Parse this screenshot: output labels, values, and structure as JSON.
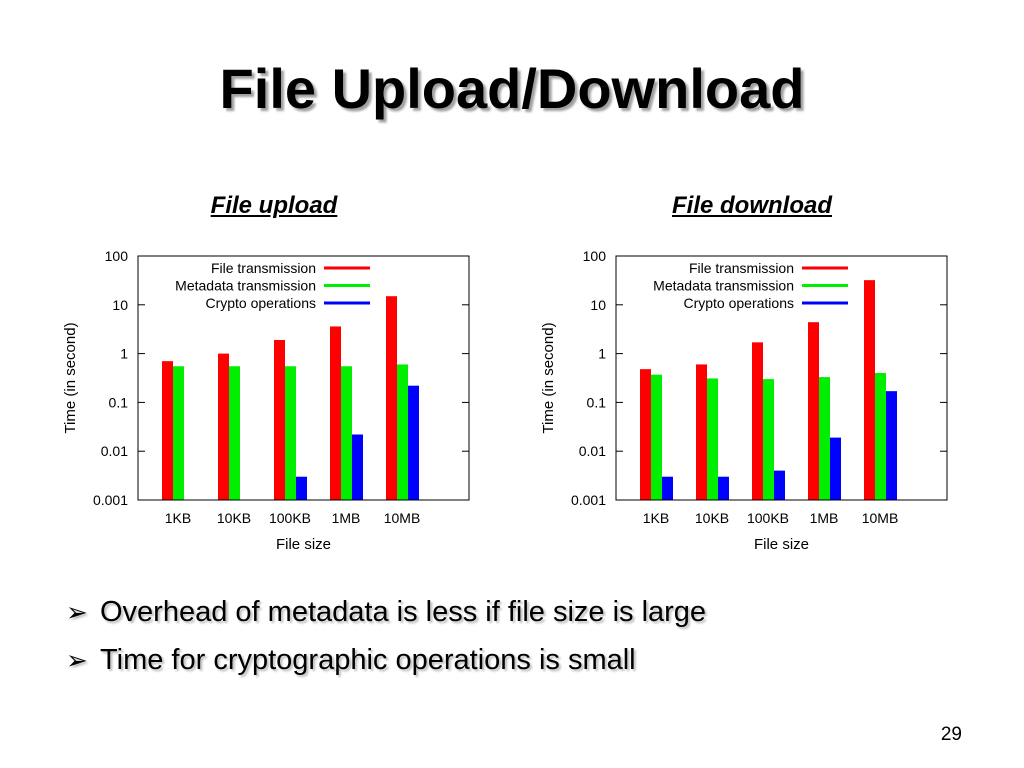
{
  "slide": {
    "title": "File Upload/Download",
    "bullets": [
      "Overhead of metadata is less if file size is large",
      "Time for cryptographic operations is small"
    ],
    "bullet_icon": "arrowhead-bullet-icon",
    "page_number": "29"
  },
  "colors": {
    "file_transmission": "#ff0000",
    "metadata_transmission": "#00ee00",
    "crypto_operations": "#0000ff"
  },
  "chart_data": [
    {
      "heading": "File upload",
      "type": "bar",
      "title": "",
      "xlabel": "File size",
      "ylabel": "Time (in second)",
      "yscale": "log",
      "ylim": [
        0.001,
        100
      ],
      "yticks": [
        "100",
        "10",
        "1",
        "0.1",
        "0.01",
        "0.001"
      ],
      "categories": [
        "1KB",
        "10KB",
        "100KB",
        "1MB",
        "10MB"
      ],
      "legend_position": "top-right",
      "series": [
        {
          "name": "File transmission",
          "values": [
            0.7,
            1.0,
            1.9,
            3.6,
            15
          ]
        },
        {
          "name": "Metadata transmission",
          "values": [
            0.55,
            0.55,
            0.55,
            0.55,
            0.6
          ]
        },
        {
          "name": "Crypto operations",
          "values": [
            null,
            null,
            0.003,
            0.022,
            0.22
          ]
        }
      ]
    },
    {
      "heading": "File download",
      "type": "bar",
      "title": "",
      "xlabel": "File size",
      "ylabel": "Time (in second)",
      "yscale": "log",
      "ylim": [
        0.001,
        100
      ],
      "yticks": [
        "100",
        "10",
        "1",
        "0.1",
        "0.01",
        "0.001"
      ],
      "categories": [
        "1KB",
        "10KB",
        "100KB",
        "1MB",
        "10MB"
      ],
      "legend_position": "top-right",
      "series": [
        {
          "name": "File transmission",
          "values": [
            0.48,
            0.6,
            1.7,
            4.4,
            32
          ]
        },
        {
          "name": "Metadata transmission",
          "values": [
            0.37,
            0.31,
            0.3,
            0.33,
            0.4
          ]
        },
        {
          "name": "Crypto operations",
          "values": [
            0.003,
            0.003,
            0.004,
            0.019,
            0.17
          ]
        }
      ]
    }
  ]
}
